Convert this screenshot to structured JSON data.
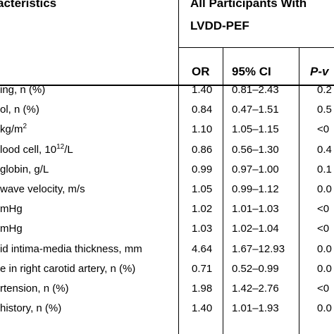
{
  "header": {
    "characteristics": "acteristics",
    "group_line1": "All Participants With",
    "group_line2": "LVDD-PEF",
    "col_or": "OR",
    "col_ci": "95% CI",
    "col_p": "P-v"
  },
  "rows": [
    {
      "label": "ing, n (%)",
      "sup": "",
      "label_after": "",
      "or": "1.40",
      "ci": "0.81–2.43",
      "p": "0.2"
    },
    {
      "label": "ol, n (%)",
      "sup": "",
      "label_after": "",
      "or": "0.84",
      "ci": "0.47–1.51",
      "p": "0.5"
    },
    {
      "label": "kg/m",
      "sup": "2",
      "label_after": "",
      "or": "1.10",
      "ci": "1.05–1.15",
      "p": "<0"
    },
    {
      "label": "lood cell, 10",
      "sup": "12",
      "label_after": "/L",
      "or": "0.86",
      "ci": "0.56–1.30",
      "p": "0.4"
    },
    {
      "label": "globin, g/L",
      "sup": "",
      "label_after": "",
      "or": "0.99",
      "ci": "0.97–1.00",
      "p": "0.1"
    },
    {
      "label": "wave velocity, m/s",
      "sup": "",
      "label_after": "",
      "or": "1.05",
      "ci": "0.99–1.12",
      "p": "0.0"
    },
    {
      "label": "mHg",
      "sup": "",
      "label_after": "",
      "or": "1.02",
      "ci": "1.01–1.03",
      "p": "<0"
    },
    {
      "label": "mHg",
      "sup": "",
      "label_after": "",
      "or": "1.03",
      "ci": "1.02–1.04",
      "p": "<0"
    },
    {
      "label": "id intima-media thickness, mm",
      "sup": "",
      "label_after": "",
      "or": "4.64",
      "ci": "1.67–12.93",
      "p": "0.0"
    },
    {
      "label": "e in right carotid artery, n (%)",
      "sup": "",
      "label_after": "",
      "or": "0.71",
      "ci": "0.52–0.99",
      "p": "0.0"
    },
    {
      "label": "rtension, n (%)",
      "sup": "",
      "label_after": "",
      "or": "1.98",
      "ci": "1.42–2.76",
      "p": "<0"
    },
    {
      "label": "history, n (%)",
      "sup": "",
      "label_after": "",
      "or": "1.40",
      "ci": "1.01–1.93",
      "p": "0.0"
    }
  ]
}
